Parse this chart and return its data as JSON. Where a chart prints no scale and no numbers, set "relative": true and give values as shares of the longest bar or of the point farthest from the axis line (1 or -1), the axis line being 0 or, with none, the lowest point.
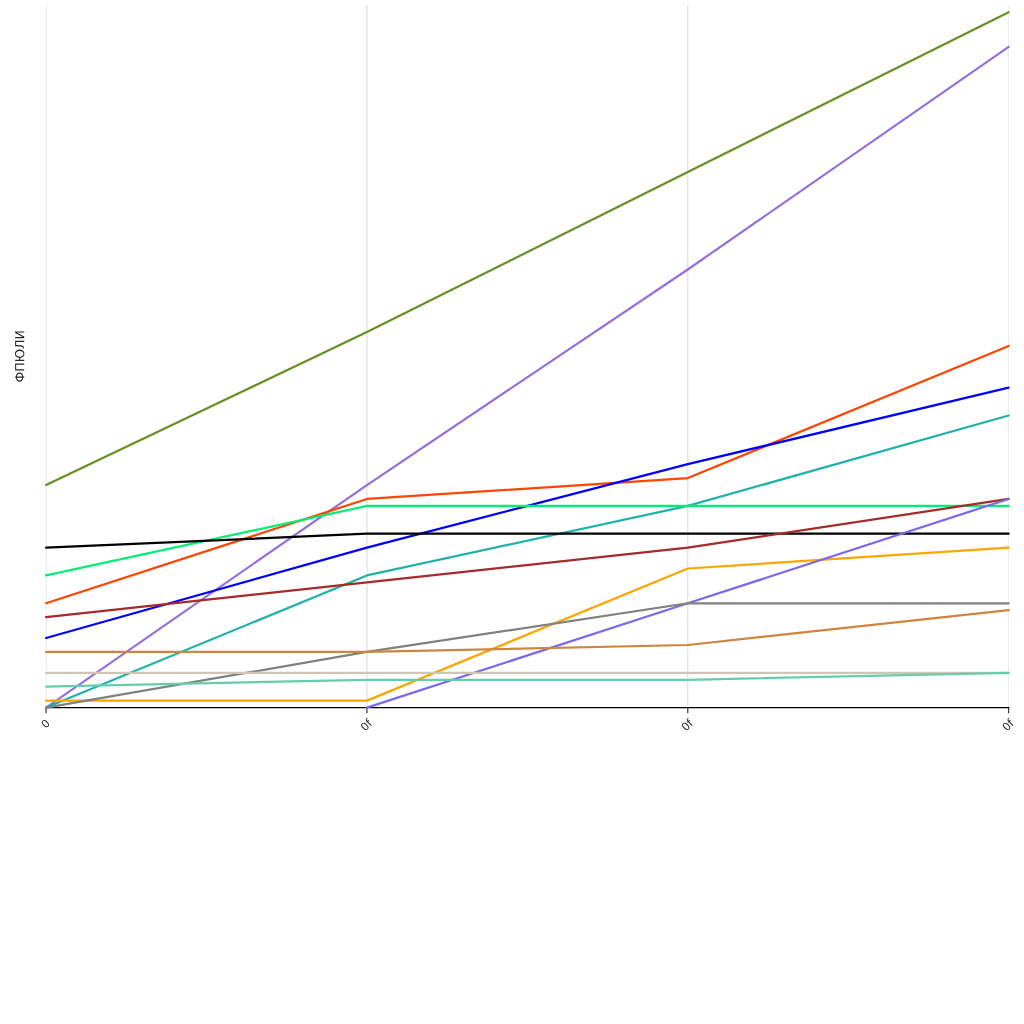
{
  "chart_data": {
    "type": "line",
    "ylabel": "ФПЮЛИ",
    "categories": [
      "0",
      "0f",
      "0f",
      "0f"
    ],
    "relative": true,
    "grid": "x",
    "marker": "none",
    "line_style": "solid",
    "series": [
      {
        "color": "#6b8e23",
        "values": [
          0.32,
          0.54,
          0.77,
          1
        ]
      },
      {
        "color": "#9370db",
        "values": [
          0,
          0.32,
          0.63,
          0.95
        ]
      },
      {
        "color": "#ff4500",
        "values": [
          0.15,
          0.3,
          0.33,
          0.52
        ]
      },
      {
        "color": "#0000ff",
        "values": [
          0.1,
          0.23,
          0.35,
          0.46
        ]
      },
      {
        "color": "#20b2aa",
        "values": [
          0,
          0.19,
          0.29,
          0.42
        ]
      },
      {
        "color": "#00ee76",
        "values": [
          0.19,
          0.29,
          0.29,
          0.29
        ]
      },
      {
        "color": "#000000",
        "values": [
          0.23,
          0.25,
          0.25,
          0.25
        ]
      },
      {
        "color": "#a52a2a",
        "values": [
          0.13,
          0.18,
          0.23,
          0.3
        ]
      },
      {
        "color": "#ffa500",
        "values": [
          0.01,
          0.01,
          0.2,
          0.23
        ]
      },
      {
        "color": "#7b68ee",
        "values": [
          null,
          0,
          0.15,
          0.3
        ]
      },
      {
        "color": "#808080",
        "values": [
          0,
          0.08,
          0.15,
          0.15
        ]
      },
      {
        "color": "#cd853f",
        "values": [
          0.08,
          0.08,
          0.09,
          0.14
        ]
      },
      {
        "color": "#d2c4b4",
        "values": [
          0.05,
          0.05,
          0.05,
          0.05
        ]
      },
      {
        "color": "#66cdaa",
        "values": [
          0.03,
          0.04,
          0.04,
          0.05
        ]
      }
    ]
  }
}
